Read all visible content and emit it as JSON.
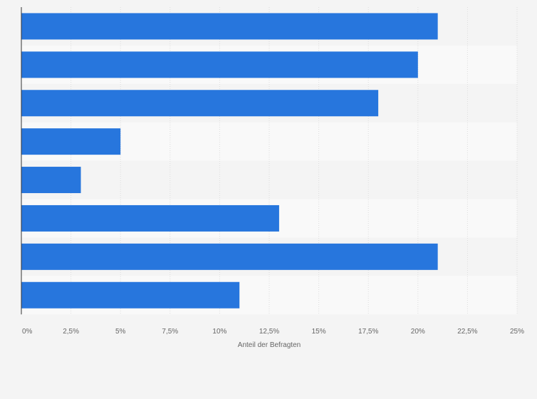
{
  "chart_data": {
    "type": "bar",
    "orientation": "horizontal",
    "categories": [
      "",
      "",
      "",
      "",
      "",
      "",
      "",
      ""
    ],
    "values": [
      21,
      20,
      18,
      5,
      3,
      13,
      21,
      11
    ],
    "title": "",
    "xlabel": "Anteil der Befragten",
    "ylabel": "",
    "xlim": [
      0,
      25
    ],
    "x_ticks": [
      0,
      2.5,
      5,
      7.5,
      10,
      12.5,
      15,
      17.5,
      20,
      22.5,
      25
    ],
    "x_tick_labels": [
      "0%",
      "2,5%",
      "5%",
      "7,5%",
      "10%",
      "12,5%",
      "15%",
      "17,5%",
      "20%",
      "22,5%",
      "25%"
    ],
    "grid": true,
    "legend": "none"
  },
  "colors": {
    "bar": "#2776dd",
    "background": "#f4f4f4",
    "band_light": "#f9f9f9",
    "band_dark": "#f4f4f4",
    "grid": "#dddddd",
    "axis": "#333333",
    "text": "#666666"
  }
}
